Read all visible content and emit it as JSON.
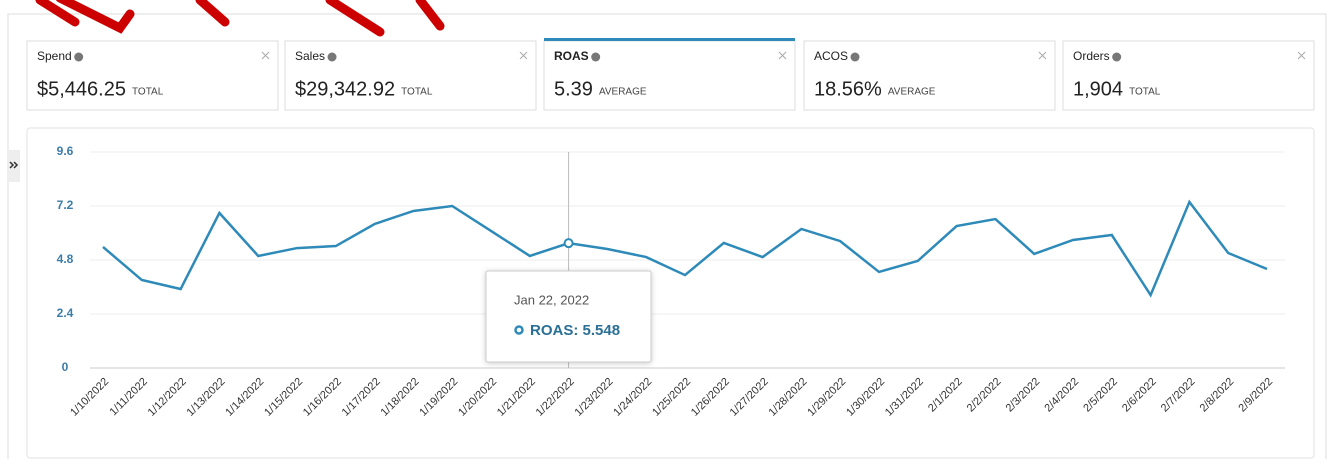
{
  "metrics": [
    {
      "name": "Spend",
      "value": "$5,446.25",
      "kind": "TOTAL"
    },
    {
      "name": "Sales",
      "value": "$29,342.92",
      "kind": "TOTAL"
    },
    {
      "name": "ROAS",
      "value": "5.39",
      "kind": "AVERAGE"
    },
    {
      "name": "ACOS",
      "value": "18.56%",
      "kind": "AVERAGE"
    },
    {
      "name": "Orders",
      "value": "1,904",
      "kind": "TOTAL"
    }
  ],
  "chart_data": {
    "type": "line",
    "categories": [
      "1/10/2022",
      "1/11/2022",
      "1/12/2022",
      "1/13/2022",
      "1/14/2022",
      "1/15/2022",
      "1/16/2022",
      "1/17/2022",
      "1/18/2022",
      "1/19/2022",
      "1/20/2022",
      "1/21/2022",
      "1/22/2022",
      "1/23/2022",
      "1/24/2022",
      "1/25/2022",
      "1/26/2022",
      "1/27/2022",
      "1/28/2022",
      "1/29/2022",
      "1/30/2022",
      "1/31/2022",
      "2/1/2022",
      "2/2/2022",
      "2/3/2022",
      "2/4/2022",
      "2/5/2022",
      "2/6/2022",
      "2/7/2022",
      "2/8/2022",
      "2/9/2022"
    ],
    "series": [
      {
        "name": "ROAS",
        "color": "#2e8ab8",
        "values": [
          5.38,
          3.91,
          3.51,
          6.89,
          4.98,
          5.33,
          5.42,
          6.4,
          6.98,
          7.2,
          6.09,
          4.98,
          5.548,
          5.29,
          4.93,
          4.13,
          5.56,
          4.93,
          6.18,
          5.64,
          4.27,
          4.76,
          6.31,
          6.62,
          5.07,
          5.69,
          5.91,
          3.24,
          7.38,
          5.11,
          4.4
        ]
      }
    ],
    "ylim": [
      0,
      9.6
    ],
    "yticks": [
      0,
      2.4,
      4.8,
      7.2,
      9.6
    ],
    "grid": true,
    "tooltip": {
      "index": 12,
      "date": "Jan 22, 2022",
      "label": "ROAS: 5.548"
    }
  }
}
